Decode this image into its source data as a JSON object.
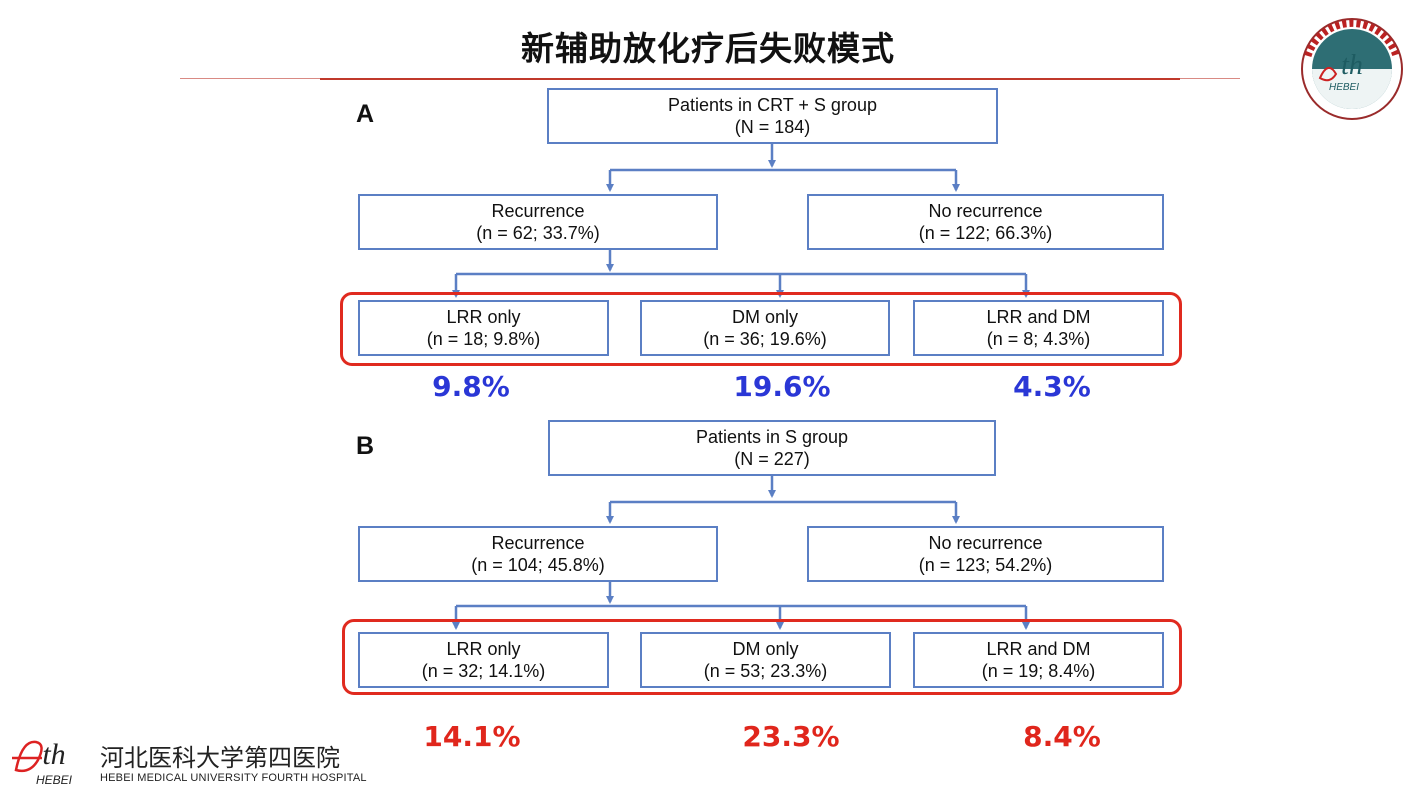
{
  "slide": {
    "title": "新辅助放化疗后失败模式",
    "accent_color": "#c0392b"
  },
  "panel_a": {
    "letter": "A",
    "root": {
      "line1": "Patients in CRT + S group",
      "line2": "(N = 184)"
    },
    "recurrence": {
      "line1": "Recurrence",
      "line2": "(n = 62; 33.7%)"
    },
    "no_recurrence": {
      "line1": "No recurrence",
      "line2": "(n = 122; 66.3%)"
    },
    "lrr": {
      "line1": "LRR only",
      "line2": "(n = 18; 9.8%)"
    },
    "dm": {
      "line1": "DM only",
      "line2": "(n = 36; 19.6%)"
    },
    "both": {
      "line1": "LRR and DM",
      "line2": "(n = 8; 4.3%)"
    },
    "callouts": [
      "9.8%",
      "19.6%",
      "4.3%"
    ],
    "callout_color": "#2a37d6"
  },
  "panel_b": {
    "letter": "B",
    "root": {
      "line1": "Patients in S group",
      "line2": "(N = 227)"
    },
    "recurrence": {
      "line1": "Recurrence",
      "line2": "(n = 104; 45.8%)"
    },
    "no_recurrence": {
      "line1": "No recurrence",
      "line2": "(n = 123; 54.2%)"
    },
    "lrr": {
      "line1": "LRR only",
      "line2": "(n = 32; 14.1%)"
    },
    "dm": {
      "line1": "DM only",
      "line2": "(n = 53; 23.3%)"
    },
    "both": {
      "line1": "LRR and DM",
      "line2": "(n = 19; 8.4%)"
    },
    "callouts": [
      "14.1%",
      "23.3%",
      "8.4%"
    ],
    "callout_color": "#e0261c"
  },
  "branding": {
    "logo_mark": "4th",
    "logo_sub": "HEBEI",
    "hospital_cn": "河北医科大学第四医院",
    "hospital_en": "HEBEI MEDICAL UNIVERSITY FOURTH HOSPITAL",
    "seal_text": "河北医科大学第四医院 The Fourth Hospital of Hebei Medical University"
  }
}
